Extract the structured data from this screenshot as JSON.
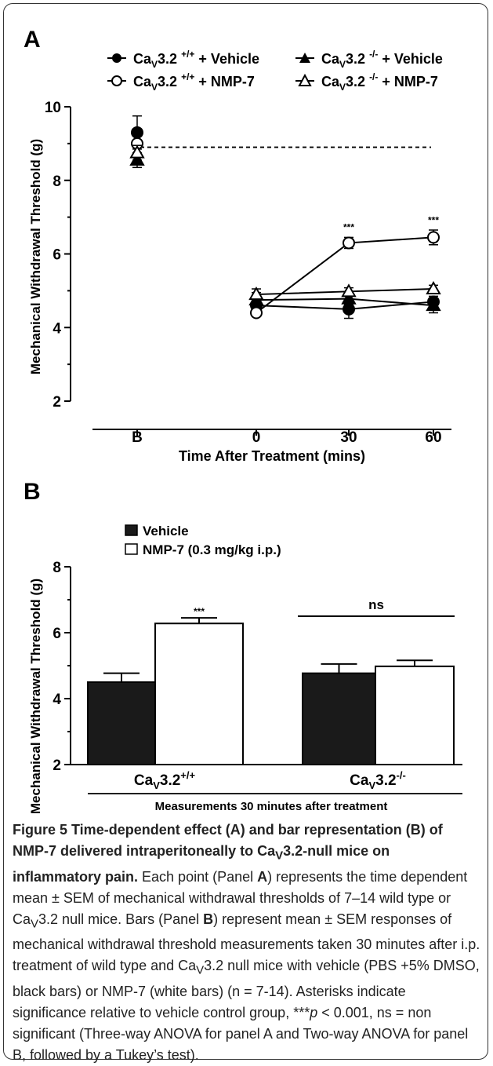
{
  "chart_data": [
    {
      "type": "line",
      "panel_label": "A",
      "x_categories": [
        "B",
        "0",
        "30",
        "60"
      ],
      "xlabel": "Time After Treatment (mins)",
      "ylabel": "Mechanical Withdrawal Threshold (g)",
      "ylim": [
        2,
        10
      ],
      "y_ticks": [
        "2",
        "4",
        "6",
        "8",
        "10"
      ],
      "baseline_dashed": 8.9,
      "legend": [
        {
          "prefix": "Ca",
          "sub": "V",
          "mid": "3.2 ",
          "sup": "+/+",
          "suffix": " + Vehicle",
          "marker": "filled-circle"
        },
        {
          "prefix": "Ca",
          "sub": "V",
          "mid": "3.2 ",
          "sup": "+/+",
          "suffix": " + NMP-7",
          "marker": "open-circle"
        },
        {
          "prefix": "Ca",
          "sub": "V",
          "mid": "3.2 ",
          "sup": "-/-",
          "suffix": " + Vehicle",
          "marker": "filled-triangle"
        },
        {
          "prefix": "Ca",
          "sub": "V",
          "mid": "3.2 ",
          "sup": "-/-",
          "suffix": " + NMP-7",
          "marker": "open-triangle"
        }
      ],
      "series": [
        {
          "marker": "filled-circle",
          "values": [
            9.3,
            4.6,
            4.5,
            4.7
          ],
          "errors": [
            0.45,
            0.15,
            0.25,
            0.15
          ]
        },
        {
          "marker": "open-circle",
          "values": [
            9.0,
            4.4,
            6.3,
            6.45
          ],
          "errors": [
            0.3,
            0.1,
            0.15,
            0.2
          ]
        },
        {
          "marker": "filled-triangle",
          "values": [
            8.55,
            4.75,
            4.78,
            4.6
          ],
          "errors": [
            0.2,
            0.2,
            0.15,
            0.2
          ]
        },
        {
          "marker": "open-triangle",
          "values": [
            8.75,
            4.9,
            4.98,
            5.05
          ],
          "errors": [
            0.2,
            0.15,
            0.1,
            0.1
          ]
        }
      ],
      "annotations": [
        {
          "x": "30",
          "y": 6.55,
          "text": "***"
        },
        {
          "x": "60",
          "y": 6.75,
          "text": "***"
        }
      ]
    },
    {
      "type": "bar",
      "panel_label": "B",
      "ylabel": "Mechanical Withdrawal Threshold (g)",
      "ylim": [
        2,
        8
      ],
      "y_ticks": [
        "2",
        "4",
        "6",
        "8"
      ],
      "legend": [
        {
          "label": "Vehicle",
          "color": "#1a1a1a"
        },
        {
          "label": "NMP-7 (0.3 mg/kg i.p.)",
          "color": "#ffffff"
        }
      ],
      "groups": [
        {
          "prefix": "Ca",
          "sub": "V",
          "mid": "3.2",
          "sup": "+/+"
        },
        {
          "prefix": "Ca",
          "sub": "V",
          "mid": "3.2",
          "sup": "-/-"
        }
      ],
      "series": [
        {
          "color": "#1a1a1a",
          "values": [
            4.5,
            4.77
          ],
          "errors": [
            0.27,
            0.28
          ]
        },
        {
          "color": "#ffffff",
          "values": [
            6.28,
            4.98
          ],
          "errors": [
            0.17,
            0.18
          ]
        }
      ],
      "sig_star": "***",
      "ns_label": "ns",
      "xlabel": "Measurements 30 minutes after treatment"
    }
  ],
  "caption": {
    "bold_lead": "Figure 5 Time-dependent effect (A) and bar representation (B) of NMP-7 delivered intraperitoneally to Ca",
    "bold_sub": "V",
    "bold_tail": "3.2-null mice on inflammatory pain.",
    "t1": " Each point (Panel ",
    "b1": "A",
    "t2": ") represents the time dependent mean ± SEM of mechanical withdrawal thresholds of 7–14 wild type or Ca",
    "s1": "V",
    "t3": "3.2 null mice. Bars (Panel ",
    "b2": "B",
    "t4": ") represent mean ± SEM responses of mechanical withdrawal threshold measurements taken 30 minutes after i.p. treatment of wild type and Ca",
    "s2": "V",
    "t5": "3.2 null mice with vehicle (PBS +5% DMSO, black bars) or NMP-7 (white bars) (n = 7-14). Asterisks indicate significance relative to vehicle control group, ***",
    "i1": "p",
    "t6": " < 0.001, ns = non significant (Three-way ANOVA for panel A and Two-way ANOVA for panel B, followed by a Tukey’s test)."
  }
}
